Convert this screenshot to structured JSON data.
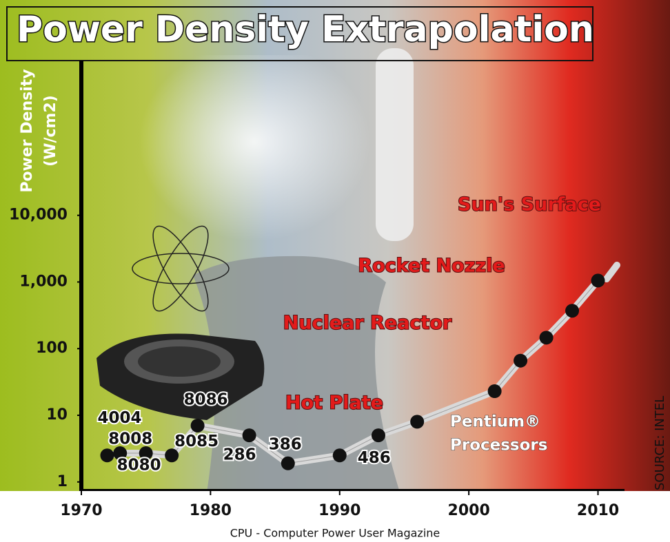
{
  "chart_data": {
    "type": "line",
    "title": "Power Density Extrapolation",
    "y_label": [
      "Power Density",
      "(W/cm2)"
    ],
    "log_y": true,
    "xlim": [
      1970,
      2012
    ],
    "xticks": [
      1970,
      1980,
      1990,
      2000,
      2010
    ],
    "ylim": [
      0.73,
      2000000
    ],
    "yticks": [
      1,
      10,
      100,
      {
        "value": 1000,
        "label": "1,000"
      },
      {
        "value": 10000,
        "label": "10,000"
      }
    ],
    "x": [
      1972,
      1973,
      1975,
      1977,
      1979,
      1983,
      1986,
      1990,
      1993,
      1996,
      2002,
      2004,
      2006,
      2008,
      2010
    ],
    "values": [
      2.5,
      2.7,
      2.7,
      2.5,
      7,
      5,
      1.9,
      2.5,
      5,
      8,
      23,
      66,
      146,
      370,
      1050
    ],
    "point_labels": [
      "4004",
      "8008",
      "8080",
      "8085",
      "8086",
      "286",
      "386",
      "486",
      null,
      null,
      null,
      null,
      null,
      null,
      null
    ],
    "line_color": "#d9d9d9",
    "marker_color": "#111111",
    "annotations": [
      "Sun's Surface",
      "Rocket Nozzle",
      "Nuclear Reactor",
      "Hot Plate",
      "Pentium®",
      "Processors"
    ],
    "source": "SOURCE: INTEL",
    "caption": "CPU - Computer Power User Magazine"
  }
}
